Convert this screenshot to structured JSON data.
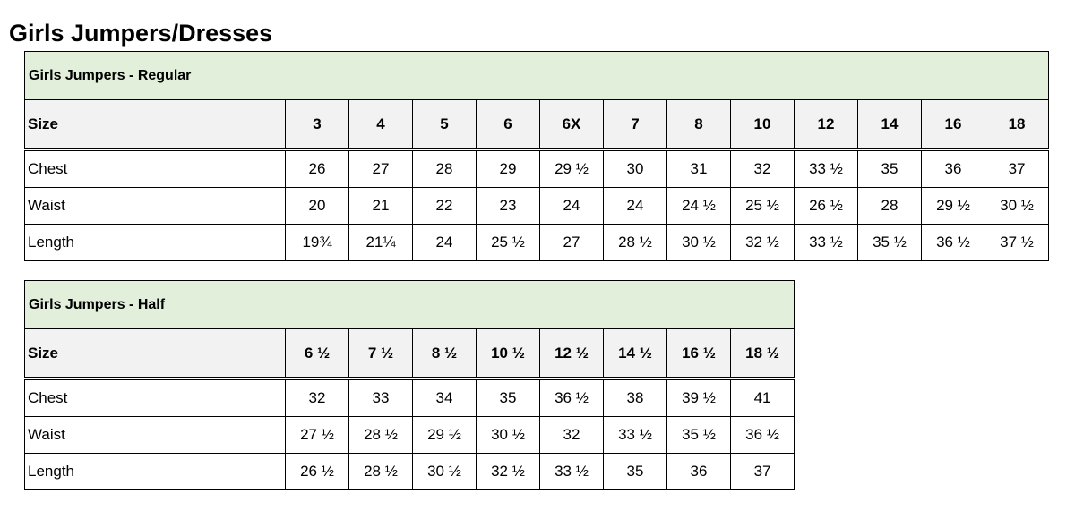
{
  "page_title": "Girls Jumpers/Dresses",
  "tables": [
    {
      "caption": "Girls Jumpers - Regular",
      "header_label": "Size",
      "sizes": [
        "3",
        "4",
        "5",
        "6",
        "6X",
        "7",
        "8",
        "10",
        "12",
        "14",
        "16",
        "18"
      ],
      "rows": [
        {
          "label": "Chest",
          "values": [
            "26",
            "27",
            "28",
            "29",
            "29 ½",
            "30",
            "31",
            "32",
            "33 ½",
            "35",
            "36",
            "37"
          ]
        },
        {
          "label": "Waist",
          "values": [
            "20",
            "21",
            "22",
            "23",
            "24",
            "24",
            "24 ½",
            "25 ½",
            "26 ½",
            "28",
            "29 ½",
            "30 ½"
          ]
        },
        {
          "label": "Length",
          "values": [
            "19¾",
            "21¼",
            "24",
            "25 ½",
            "27",
            "28 ½",
            "30 ½",
            "32 ½",
            "33 ½",
            "35 ½",
            "36 ½",
            "37 ½"
          ]
        }
      ]
    },
    {
      "caption": "Girls Jumpers - Half",
      "header_label": "Size",
      "sizes": [
        "6 ½",
        "7 ½",
        "8 ½",
        "10 ½",
        "12 ½",
        "14 ½",
        "16 ½",
        "18 ½"
      ],
      "rows": [
        {
          "label": "Chest",
          "values": [
            "32",
            "33",
            "34",
            "35",
            "36 ½",
            "38",
            "39 ½",
            "41"
          ]
        },
        {
          "label": "Waist",
          "values": [
            "27 ½",
            "28 ½",
            "29 ½",
            "30 ½",
            "32",
            "33 ½",
            "35 ½",
            "36 ½"
          ]
        },
        {
          "label": "Length",
          "values": [
            "26 ½",
            "28 ½",
            "30 ½",
            "32 ½",
            "33 ½",
            "35",
            "36",
            "37"
          ]
        }
      ]
    }
  ],
  "colors": {
    "caption_bg": "#e2efda",
    "header_bg": "#f2f2f2",
    "border": "#000000"
  }
}
